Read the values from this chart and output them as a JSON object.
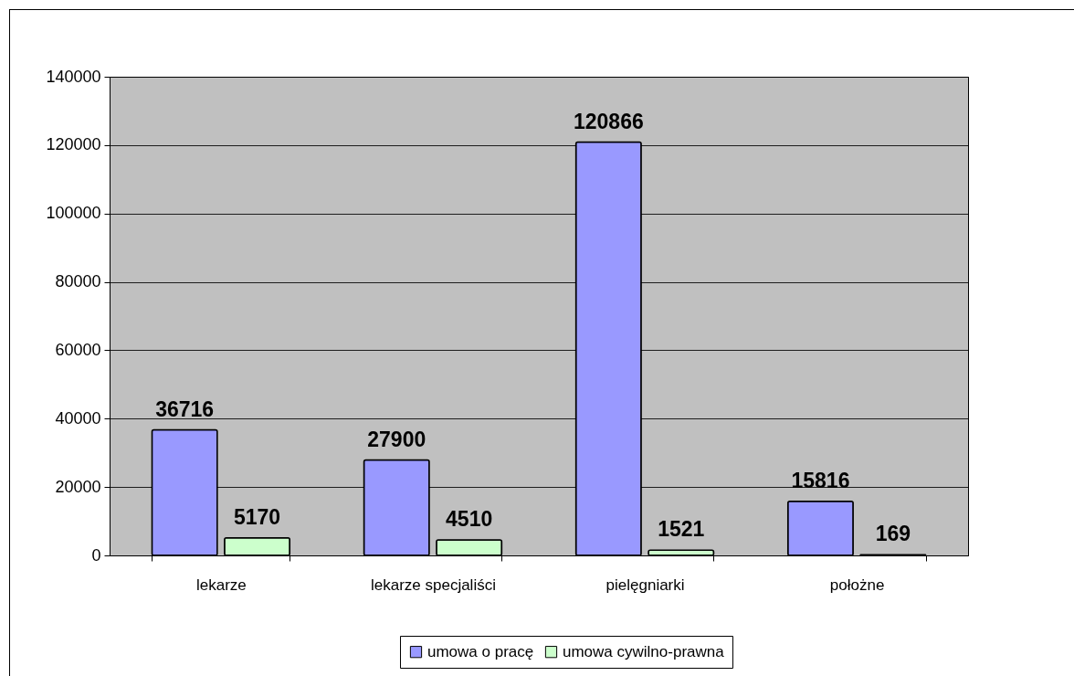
{
  "chart_data": {
    "type": "bar",
    "categories": [
      "lekarze",
      "lekarze specjaliści",
      "pielęgniarki",
      "położne"
    ],
    "series": [
      {
        "name": "umowa o pracę",
        "color": "#9999ff",
        "values": [
          36716,
          27900,
          120866,
          15816
        ]
      },
      {
        "name": "umowa cywilno-prawna",
        "color": "#ccffcc",
        "values": [
          5170,
          4510,
          1521,
          169
        ]
      }
    ],
    "ylim": [
      0,
      140000
    ],
    "yticks": [
      0,
      20000,
      40000,
      60000,
      80000,
      100000,
      120000,
      140000
    ],
    "grid": "y",
    "legend": "bottom",
    "data_labels": true
  }
}
